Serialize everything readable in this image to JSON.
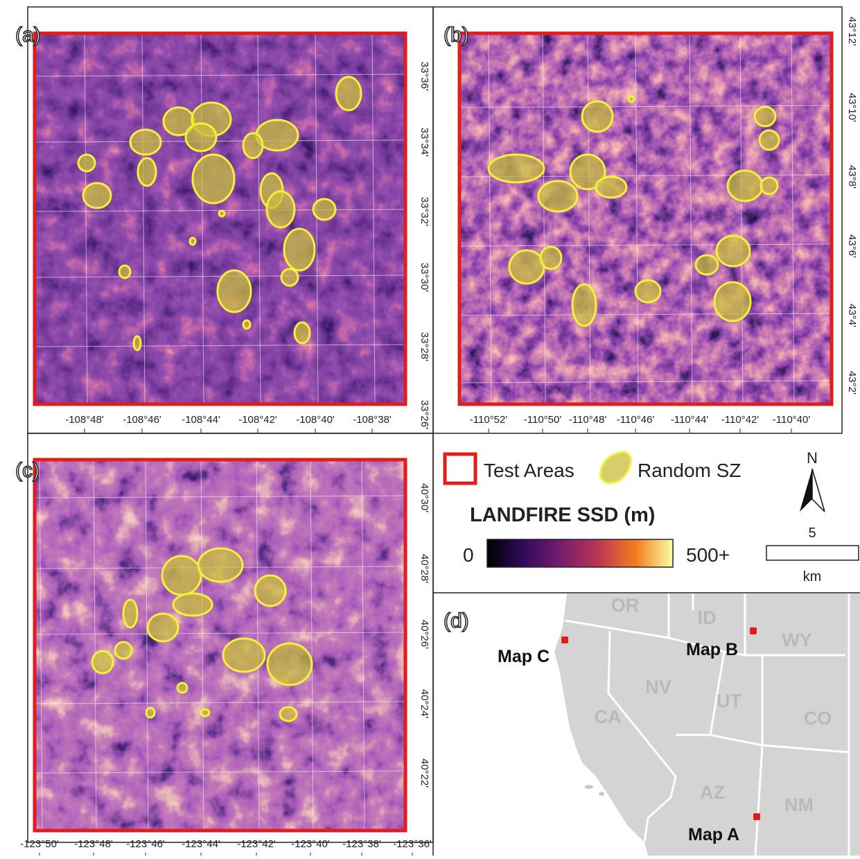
{
  "panels": [
    {
      "label": "(a)",
      "x_ticks": [
        "-108°48'",
        "-108°46'",
        "-108°44'",
        "-108°42'",
        "-108°40'",
        "-108°38'"
      ],
      "y_ticks": [
        "33°36'",
        "33°34'",
        "33°32'",
        "33°30'",
        "33°28'",
        "33°26'"
      ]
    },
    {
      "label": "(b)",
      "x_ticks": [
        "-110°52'",
        "-110°50'",
        "-110°48'",
        "-110°46'",
        "-110°44'",
        "-110°42'",
        "-110°40'"
      ],
      "y_ticks": [
        "43°12'",
        "43°10'",
        "43°8'",
        "43°6'",
        "43°4'",
        "43°2'"
      ]
    },
    {
      "label": "(c)",
      "x_ticks": [
        "-123°50'",
        "-123°48'",
        "-123°46'",
        "-123°44'",
        "-123°42'",
        "-123°40'",
        "-123°38'",
        "-123°36'"
      ],
      "y_ticks": [
        "40°30'",
        "40°28'",
        "40°26'",
        "40°24'",
        "40°22'"
      ]
    }
  ],
  "legend": {
    "test_areas": "Test Areas",
    "random_sz": "Random SZ",
    "colorbar_title": "LANDFIRE SSD (m)",
    "colorbar_min": "0",
    "colorbar_max": "500+",
    "north": "N",
    "scale_value": "5",
    "scale_unit": "km"
  },
  "inset": {
    "label": "(d)",
    "states": [
      {
        "name": "OR",
        "x": 0
      },
      {
        "name": "ID",
        "x": 0
      },
      {
        "name": "WY",
        "x": 0
      },
      {
        "name": "NV",
        "x": 0
      },
      {
        "name": "UT",
        "x": 0
      },
      {
        "name": "CO",
        "x": 0
      },
      {
        "name": "CA",
        "x": 0
      },
      {
        "name": "AZ",
        "x": 0
      },
      {
        "name": "NM",
        "x": 0
      }
    ],
    "maps": [
      "Map C",
      "Map B",
      "Map A"
    ]
  }
}
